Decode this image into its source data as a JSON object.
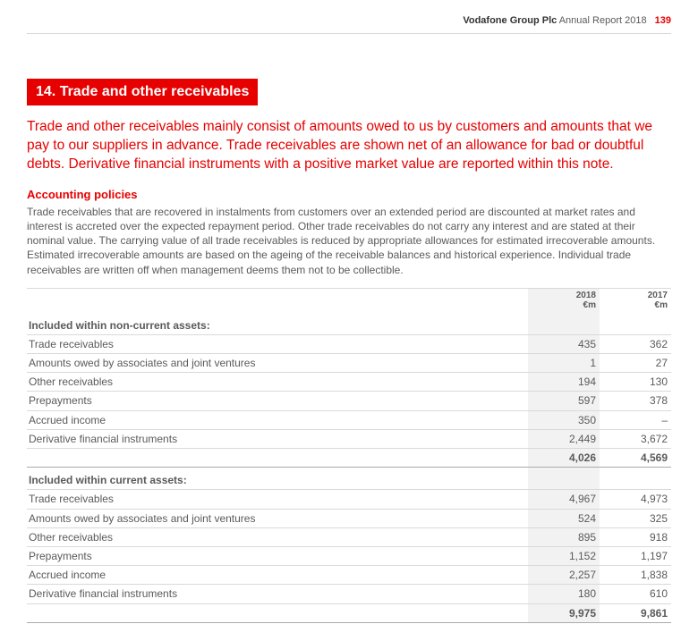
{
  "header": {
    "company": "Vodafone Group Plc",
    "doc": "Annual Report 2018",
    "page": "139"
  },
  "section": {
    "tag": "14. Trade and other receivables"
  },
  "intro": "Trade and other receivables mainly consist of amounts owed to us by customers and amounts that we pay to our suppliers in advance. Trade receivables are shown net of an allowance for bad or doubtful debts. Derivative financial instruments with a positive market value are reported within this note.",
  "policies": {
    "heading": "Accounting policies",
    "body": "Trade receivables that are recovered in instalments from customers over an extended period are discounted at market rates and interest is accreted over the expected repayment period. Other trade receivables do not carry any interest and are stated at their nominal value. The carrying value of all trade receivables is reduced by appropriate allowances for estimated irrecoverable amounts. Estimated irrecoverable amounts are based on the ageing of the receivable balances and historical experience. Individual trade receivables are written off when management deems them not to be collectible."
  },
  "table": {
    "col1_a": "2018",
    "col1_b": "€m",
    "col2_a": "2017",
    "col2_b": "€m",
    "group1": {
      "title": "Included within non-current assets:",
      "r0": {
        "l": "Trade receivables",
        "a": "435",
        "b": "362"
      },
      "r1": {
        "l": "Amounts owed by associates and joint ventures",
        "a": "1",
        "b": "27"
      },
      "r2": {
        "l": "Other receivables",
        "a": "194",
        "b": "130"
      },
      "r3": {
        "l": "Prepayments",
        "a": "597",
        "b": "378"
      },
      "r4": {
        "l": "Accrued income",
        "a": "350",
        "b": "–"
      },
      "r5": {
        "l": "Derivative financial instruments",
        "a": "2,449",
        "b": "3,672"
      },
      "total": {
        "a": "4,026",
        "b": "4,569"
      }
    },
    "group2": {
      "title": "Included within current assets:",
      "r0": {
        "l": "Trade receivables",
        "a": "4,967",
        "b": "4,973"
      },
      "r1": {
        "l": "Amounts owed by associates and joint ventures",
        "a": "524",
        "b": "325"
      },
      "r2": {
        "l": "Other receivables",
        "a": "895",
        "b": "918"
      },
      "r3": {
        "l": "Prepayments",
        "a": "1,152",
        "b": "1,197"
      },
      "r4": {
        "l": "Accrued income",
        "a": "2,257",
        "b": "1,838"
      },
      "r5": {
        "l": "Derivative financial instruments",
        "a": "180",
        "b": "610"
      },
      "total": {
        "a": "9,975",
        "b": "9,861"
      }
    }
  }
}
